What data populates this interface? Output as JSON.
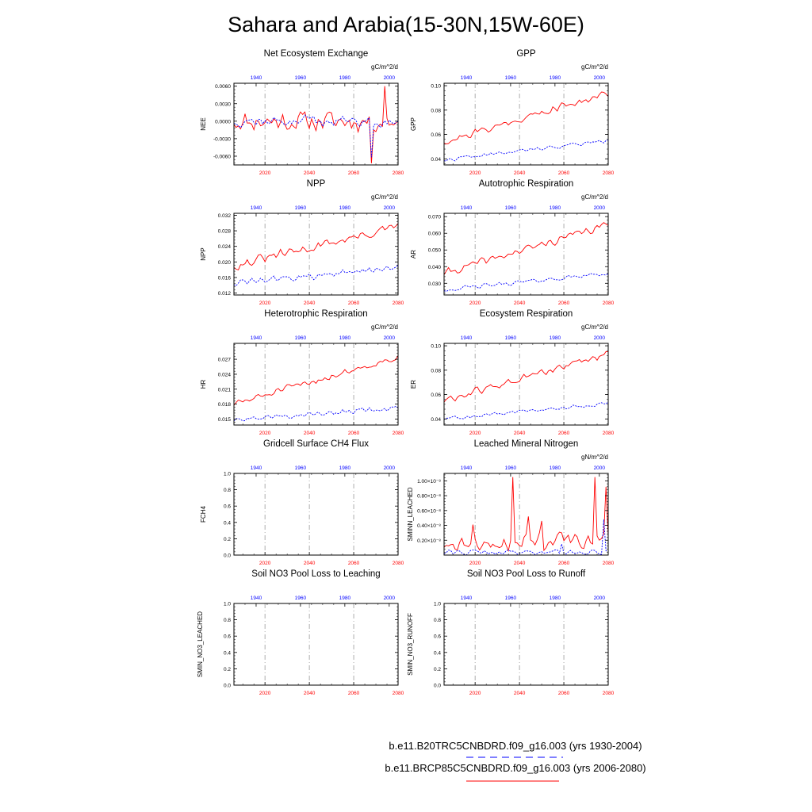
{
  "title": "Sahara and Arabia(15-30N,15W-60E)",
  "colors": {
    "red": "#ff0000",
    "blue": "#0000ff",
    "axis": "#000000",
    "grid": "#999999"
  },
  "legend": {
    "entries": [
      {
        "label": "b.e11.B20TRC5CNBDRD.f09_g16.003 (yrs 1930-2004)",
        "color": "#0000ff",
        "style": "dashed"
      },
      {
        "label": "b.e11.BRCP85C5CNBDRD.f09_g16.003 (yrs 2006-2080)",
        "color": "#ff0000",
        "style": "solid"
      }
    ]
  },
  "chart_data": [
    {
      "type": "line",
      "title": "Net Ecosystem Exchange",
      "ylabel": "NEE",
      "units": "gC/m^2/d",
      "ylim": [
        -0.0075,
        0.0065
      ],
      "yticks": [
        -0.006,
        -0.003,
        0,
        0.003,
        0.006
      ],
      "ytick_labels": [
        "-0.0060",
        "-0.0030",
        "0.0000",
        "0.0030",
        "0.0060"
      ],
      "x_bottom": {
        "label_years": [
          2020,
          2040,
          2060,
          2080
        ],
        "range": [
          2006,
          2080
        ]
      },
      "x_top": {
        "label_years": [
          1940,
          1960,
          1980,
          2000
        ],
        "range": [
          1930,
          2004
        ]
      },
      "series": [
        {
          "name": "b.e11.BRCP85C5CNBDRD.f09_g16.003",
          "color": "red",
          "trend": 0,
          "noise": 0.0022,
          "low": -0.0072,
          "high": 0.0062,
          "seed": 11,
          "spikes": [
            [
              68,
              0.006
            ],
            [
              62,
              -0.0072
            ]
          ]
        },
        {
          "name": "b.e11.B20TRC5CNBDRD.f09_g16.003",
          "color": "blue",
          "trend": 0,
          "noise": 0.0013,
          "low": -0.0062,
          "high": 0.0025,
          "seed": 12,
          "spikes": [
            [
              62,
              -0.0062
            ]
          ]
        }
      ]
    },
    {
      "type": "line",
      "title": "GPP",
      "ylabel": "GPP",
      "units": "gC/m^2/d",
      "ylim": [
        0.035,
        0.102
      ],
      "yticks": [
        0.04,
        0.06,
        0.08,
        0.1
      ],
      "ytick_labels": [
        "0.04",
        "0.06",
        "0.08",
        "0.10"
      ],
      "x_bottom": {
        "label_years": [
          2020,
          2040,
          2060,
          2080
        ],
        "range": [
          2006,
          2080
        ]
      },
      "x_top": {
        "label_years": [
          1940,
          1960,
          1980,
          2000
        ],
        "range": [
          1930,
          2004
        ]
      },
      "series": [
        {
          "name": "b.e11.BRCP85C5CNBDRD.f09_g16.003",
          "color": "red",
          "start": 0.054,
          "end": 0.094,
          "noise": 0.004,
          "low": 0.05,
          "high": 0.1,
          "seed": 21
        },
        {
          "name": "b.e11.B20TRC5CNBDRD.f09_g16.003",
          "color": "blue",
          "start": 0.039,
          "end": 0.055,
          "noise": 0.002,
          "low": 0.037,
          "high": 0.06,
          "seed": 22
        }
      ]
    },
    {
      "type": "line",
      "title": "NPP",
      "ylabel": "NPP",
      "units": "gC/m^2/d",
      "ylim": [
        0.0115,
        0.0325
      ],
      "yticks": [
        0.012,
        0.016,
        0.02,
        0.024,
        0.028,
        0.032
      ],
      "ytick_labels": [
        "0.012",
        "0.016",
        "0.020",
        "0.024",
        "0.028",
        "0.032"
      ],
      "x_bottom": {
        "label_years": [
          2020,
          2040,
          2060,
          2080
        ],
        "range": [
          2006,
          2080
        ]
      },
      "x_top": {
        "label_years": [
          1940,
          1960,
          1980,
          2000
        ],
        "range": [
          1930,
          2004
        ]
      },
      "series": [
        {
          "name": "b.e11.BRCP85C5CNBDRD.f09_g16.003",
          "color": "red",
          "start": 0.019,
          "end": 0.029,
          "noise": 0.0015,
          "low": 0.017,
          "high": 0.032,
          "seed": 31
        },
        {
          "name": "b.e11.B20TRC5CNBDRD.f09_g16.003",
          "color": "blue",
          "start": 0.0145,
          "end": 0.0185,
          "noise": 0.0012,
          "low": 0.012,
          "high": 0.0195,
          "seed": 32
        }
      ]
    },
    {
      "type": "line",
      "title": "Autotrophic Respiration",
      "ylabel": "AR",
      "units": "gC/m^2/d",
      "ylim": [
        0.023,
        0.072
      ],
      "yticks": [
        0.03,
        0.04,
        0.05,
        0.06,
        0.07
      ],
      "ytick_labels": [
        "0.030",
        "0.040",
        "0.050",
        "0.060",
        "0.070"
      ],
      "x_bottom": {
        "label_years": [
          2020,
          2040,
          2060,
          2080
        ],
        "range": [
          2006,
          2080
        ]
      },
      "x_top": {
        "label_years": [
          1940,
          1960,
          1980,
          2000
        ],
        "range": [
          1930,
          2004
        ]
      },
      "series": [
        {
          "name": "b.e11.BRCP85C5CNBDRD.f09_g16.003",
          "color": "red",
          "start": 0.036,
          "end": 0.065,
          "noise": 0.003,
          "low": 0.033,
          "high": 0.07,
          "seed": 41
        },
        {
          "name": "b.e11.B20TRC5CNBDRD.f09_g16.003",
          "color": "blue",
          "start": 0.026,
          "end": 0.036,
          "noise": 0.0015,
          "low": 0.024,
          "high": 0.039,
          "seed": 42
        }
      ]
    },
    {
      "type": "line",
      "title": "Heterotrophic Respiration",
      "ylabel": "HR",
      "units": "gC/m^2/d",
      "ylim": [
        0.0138,
        0.0302
      ],
      "yticks": [
        0.015,
        0.018,
        0.021,
        0.024,
        0.027
      ],
      "ytick_labels": [
        "0.015",
        "0.018",
        "0.021",
        "0.024",
        "0.027"
      ],
      "x_bottom": {
        "label_years": [
          2020,
          2040,
          2060,
          2080
        ],
        "range": [
          2006,
          2080
        ]
      },
      "x_top": {
        "label_years": [
          1940,
          1960,
          1980,
          2000
        ],
        "range": [
          1930,
          2004
        ]
      },
      "series": [
        {
          "name": "b.e11.BRCP85C5CNBDRD.f09_g16.003",
          "color": "red",
          "start": 0.018,
          "end": 0.0275,
          "noise": 0.0009,
          "low": 0.0165,
          "high": 0.0297,
          "seed": 51
        },
        {
          "name": "b.e11.B20TRC5CNBDRD.f09_g16.003",
          "color": "blue",
          "start": 0.0148,
          "end": 0.0172,
          "noise": 0.0007,
          "low": 0.0143,
          "high": 0.0187,
          "seed": 52
        }
      ]
    },
    {
      "type": "line",
      "title": "Ecosystem Respiration",
      "ylabel": "ER",
      "units": "gC/m^2/d",
      "ylim": [
        0.035,
        0.102
      ],
      "yticks": [
        0.04,
        0.06,
        0.08,
        0.1
      ],
      "ytick_labels": [
        "0.04",
        "0.06",
        "0.08",
        "0.10"
      ],
      "x_bottom": {
        "label_years": [
          2020,
          2040,
          2060,
          2080
        ],
        "range": [
          2006,
          2080
        ]
      },
      "x_top": {
        "label_years": [
          1940,
          1960,
          1980,
          2000
        ],
        "range": [
          1930,
          2004
        ]
      },
      "series": [
        {
          "name": "b.e11.BRCP85C5CNBDRD.f09_g16.003",
          "color": "red",
          "start": 0.055,
          "end": 0.093,
          "noise": 0.004,
          "low": 0.05,
          "high": 0.1,
          "seed": 61
        },
        {
          "name": "b.e11.B20TRC5CNBDRD.f09_g16.003",
          "color": "blue",
          "start": 0.04,
          "end": 0.053,
          "noise": 0.002,
          "low": 0.038,
          "high": 0.057,
          "seed": 62
        }
      ]
    },
    {
      "type": "line",
      "title": "Gridcell Surface CH4 Flux",
      "ylabel": "FCH4",
      "units": "",
      "ylim": [
        0,
        1
      ],
      "yticks": [
        0,
        0.2,
        0.4,
        0.6,
        0.8,
        1
      ],
      "ytick_labels": [
        "0.0",
        "0.2",
        "0.4",
        "0.6",
        "0.8",
        "1.0"
      ],
      "x_bottom": {
        "label_years": [
          2020,
          2040,
          2060,
          2080
        ],
        "range": [
          2006,
          2080
        ]
      },
      "x_top": {
        "label_years": [
          1940,
          1960,
          1980,
          2000
        ],
        "range": [
          1930,
          2004
        ]
      },
      "series": []
    },
    {
      "type": "line",
      "title": "Leached Mineral Nitrogen",
      "ylabel": "SMINN_LEACHED",
      "units": "gN/m^2/d",
      "ylim": [
        0,
        1.1e-08
      ],
      "yticks": [
        2e-09,
        4e-09,
        6e-09,
        8e-09,
        1e-08
      ],
      "ytick_labels": [
        "0.20×10⁻⁸",
        "0.40×10⁻⁸",
        "0.60×10⁻⁸",
        "0.80×10⁻⁸",
        "1.00×10⁻⁸"
      ],
      "x_bottom": {
        "label_years": [
          2020,
          2040,
          2060,
          2080
        ],
        "range": [
          2006,
          2080
        ]
      },
      "x_top": {
        "label_years": [
          1940,
          1960,
          1980,
          2000
        ],
        "range": [
          1930,
          2004
        ]
      },
      "series": [
        {
          "name": "b.e11.BRCP85C5CNBDRD.f09_g16.003",
          "color": "red",
          "start": 1.4e-09,
          "end": 2.2e-09,
          "noise": 1.4e-09,
          "low": 1e-10,
          "high": 1.06e-08,
          "seed": 81,
          "spikes": [
            [
              31,
              1.05e-08
            ],
            [
              68,
              1.05e-08
            ],
            [
              73,
              9.2e-09
            ],
            [
              38,
              5.2e-09
            ],
            [
              44,
              4.6e-09
            ],
            [
              13,
              4.1e-09
            ]
          ]
        },
        {
          "name": "b.e11.B20TRC5CNBDRD.f09_g16.003",
          "color": "blue",
          "start": 3e-10,
          "end": 5e-10,
          "noise": 5e-10,
          "low": 0,
          "high": 5e-09,
          "seed": 82,
          "spikes": [
            [
              72,
              4.8e-09
            ],
            [
              53,
              1.5e-09
            ]
          ]
        }
      ]
    },
    {
      "type": "line",
      "title": "Soil NO3 Pool Loss to Leaching",
      "ylabel": "SMIN_NO3_LEACHED",
      "units": "",
      "ylim": [
        0,
        1
      ],
      "yticks": [
        0,
        0.2,
        0.4,
        0.6,
        0.8,
        1
      ],
      "ytick_labels": [
        "0.0",
        "0.2",
        "0.4",
        "0.6",
        "0.8",
        "1.0"
      ],
      "x_bottom": {
        "label_years": [
          2020,
          2040,
          2060,
          2080
        ],
        "range": [
          2006,
          2080
        ]
      },
      "x_top": {
        "label_years": [
          1940,
          1960,
          1980,
          2000
        ],
        "range": [
          1930,
          2004
        ]
      },
      "series": []
    },
    {
      "type": "line",
      "title": "Soil NO3 Pool Loss to Runoff",
      "ylabel": "SMIN_NO3_RUNOFF",
      "units": "",
      "ylim": [
        0,
        1
      ],
      "yticks": [
        0,
        0.2,
        0.4,
        0.6,
        0.8,
        1
      ],
      "ytick_labels": [
        "0.0",
        "0.2",
        "0.4",
        "0.6",
        "0.8",
        "1.0"
      ],
      "x_bottom": {
        "label_years": [
          2020,
          2040,
          2060,
          2080
        ],
        "range": [
          2006,
          2080
        ]
      },
      "x_top": {
        "label_years": [
          1940,
          1960,
          1980,
          2000
        ],
        "range": [
          1930,
          2004
        ]
      },
      "series": []
    }
  ]
}
